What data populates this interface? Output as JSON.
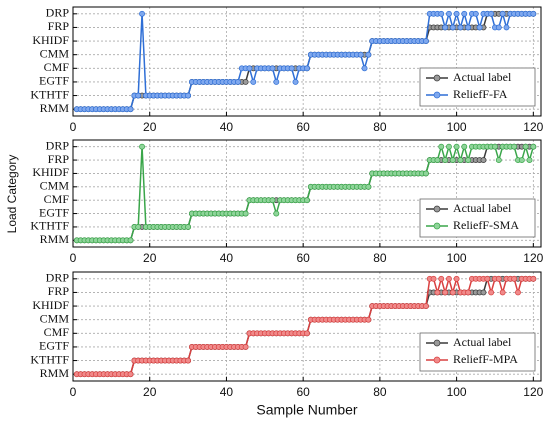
{
  "chart_data": [
    {
      "type": "line",
      "x": [
        1,
        2,
        3,
        4,
        5,
        6,
        7,
        8,
        9,
        10,
        11,
        12,
        13,
        14,
        15,
        16,
        17,
        18,
        19,
        20,
        21,
        22,
        23,
        24,
        25,
        26,
        27,
        28,
        29,
        30,
        31,
        32,
        33,
        34,
        35,
        36,
        37,
        38,
        39,
        40,
        41,
        42,
        43,
        44,
        45,
        46,
        47,
        48,
        49,
        50,
        51,
        52,
        53,
        54,
        55,
        56,
        57,
        58,
        59,
        60,
        61,
        62,
        63,
        64,
        65,
        66,
        67,
        68,
        69,
        70,
        71,
        72,
        73,
        74,
        75,
        76,
        77,
        78,
        79,
        80,
        81,
        82,
        83,
        84,
        85,
        86,
        87,
        88,
        89,
        90,
        91,
        92,
        93,
        94,
        95,
        96,
        97,
        98,
        99,
        100,
        101,
        102,
        103,
        104,
        105,
        106,
        107,
        108,
        109,
        110,
        111,
        112,
        113,
        114,
        115,
        116,
        117,
        118,
        119,
        120
      ],
      "series": [
        {
          "name": "Actual label",
          "color": "#3a3a3a",
          "marker": "#9a9a9a",
          "values": [
            1,
            1,
            1,
            1,
            1,
            1,
            1,
            1,
            1,
            1,
            1,
            1,
            1,
            1,
            1,
            2,
            2,
            2,
            2,
            2,
            2,
            2,
            2,
            2,
            2,
            2,
            2,
            2,
            2,
            2,
            3,
            3,
            3,
            3,
            3,
            3,
            3,
            3,
            3,
            3,
            3,
            3,
            3,
            3,
            3,
            4,
            4,
            4,
            4,
            4,
            4,
            4,
            4,
            4,
            4,
            4,
            4,
            4,
            4,
            4,
            4,
            5,
            5,
            5,
            5,
            5,
            5,
            5,
            5,
            5,
            5,
            5,
            5,
            5,
            5,
            5,
            5,
            6,
            6,
            6,
            6,
            6,
            6,
            6,
            6,
            6,
            6,
            6,
            6,
            6,
            6,
            6,
            7,
            7,
            7,
            7,
            7,
            7,
            7,
            7,
            7,
            7,
            7,
            7,
            7,
            7,
            7,
            8,
            8,
            8,
            8,
            8,
            8,
            8,
            8,
            8,
            8,
            8,
            8,
            8
          ]
        },
        {
          "name": "ReliefF-FA",
          "color": "#2f6fd6",
          "marker": "#7fa8ee",
          "values": [
            1,
            1,
            1,
            1,
            1,
            1,
            1,
            1,
            1,
            1,
            1,
            1,
            1,
            1,
            1,
            2,
            2,
            8,
            2,
            2,
            2,
            2,
            2,
            2,
            2,
            2,
            2,
            2,
            2,
            2,
            3,
            3,
            3,
            3,
            3,
            3,
            3,
            3,
            3,
            3,
            3,
            3,
            3,
            4,
            4,
            4,
            3,
            4,
            4,
            4,
            4,
            4,
            3,
            4,
            4,
            4,
            4,
            3,
            4,
            4,
            4,
            5,
            5,
            5,
            5,
            5,
            5,
            5,
            5,
            5,
            5,
            5,
            5,
            5,
            5,
            4,
            5,
            6,
            6,
            6,
            6,
            6,
            6,
            6,
            6,
            6,
            6,
            6,
            6,
            6,
            6,
            6,
            8,
            8,
            8,
            8,
            7,
            8,
            7,
            8,
            7,
            8,
            7,
            8,
            8,
            7,
            8,
            8,
            8,
            7,
            7,
            8,
            7,
            8,
            8,
            8,
            8,
            8,
            8,
            8
          ]
        }
      ],
      "xlim": [
        0,
        122
      ],
      "xticks": [
        0,
        20,
        40,
        60,
        80,
        100,
        120
      ],
      "ylim": [
        0.5,
        8.5
      ],
      "yticks": [
        {
          "value": 1,
          "label": "RMM"
        },
        {
          "value": 2,
          "label": "KTHTF"
        },
        {
          "value": 3,
          "label": "EGTF"
        },
        {
          "value": 4,
          "label": "CMF"
        },
        {
          "value": 5,
          "label": "CMM"
        },
        {
          "value": 6,
          "label": "KHIDF"
        },
        {
          "value": 7,
          "label": "FRP"
        },
        {
          "value": 8,
          "label": "DRP"
        }
      ],
      "grid": true,
      "legend": "lower right"
    },
    {
      "type": "line",
      "ylabel": "Load Category",
      "x": [
        1,
        2,
        3,
        4,
        5,
        6,
        7,
        8,
        9,
        10,
        11,
        12,
        13,
        14,
        15,
        16,
        17,
        18,
        19,
        20,
        21,
        22,
        23,
        24,
        25,
        26,
        27,
        28,
        29,
        30,
        31,
        32,
        33,
        34,
        35,
        36,
        37,
        38,
        39,
        40,
        41,
        42,
        43,
        44,
        45,
        46,
        47,
        48,
        49,
        50,
        51,
        52,
        53,
        54,
        55,
        56,
        57,
        58,
        59,
        60,
        61,
        62,
        63,
        64,
        65,
        66,
        67,
        68,
        69,
        70,
        71,
        72,
        73,
        74,
        75,
        76,
        77,
        78,
        79,
        80,
        81,
        82,
        83,
        84,
        85,
        86,
        87,
        88,
        89,
        90,
        91,
        92,
        93,
        94,
        95,
        96,
        97,
        98,
        99,
        100,
        101,
        102,
        103,
        104,
        105,
        106,
        107,
        108,
        109,
        110,
        111,
        112,
        113,
        114,
        115,
        116,
        117,
        118,
        119,
        120
      ],
      "series": [
        {
          "name": "Actual label",
          "color": "#3a3a3a",
          "marker": "#9a9a9a",
          "values": [
            1,
            1,
            1,
            1,
            1,
            1,
            1,
            1,
            1,
            1,
            1,
            1,
            1,
            1,
            1,
            2,
            2,
            2,
            2,
            2,
            2,
            2,
            2,
            2,
            2,
            2,
            2,
            2,
            2,
            2,
            3,
            3,
            3,
            3,
            3,
            3,
            3,
            3,
            3,
            3,
            3,
            3,
            3,
            3,
            3,
            4,
            4,
            4,
            4,
            4,
            4,
            4,
            4,
            4,
            4,
            4,
            4,
            4,
            4,
            4,
            4,
            5,
            5,
            5,
            5,
            5,
            5,
            5,
            5,
            5,
            5,
            5,
            5,
            5,
            5,
            5,
            5,
            6,
            6,
            6,
            6,
            6,
            6,
            6,
            6,
            6,
            6,
            6,
            6,
            6,
            6,
            6,
            7,
            7,
            7,
            7,
            7,
            7,
            7,
            7,
            7,
            7,
            7,
            7,
            7,
            7,
            7,
            8,
            8,
            8,
            8,
            8,
            8,
            8,
            8,
            8,
            8,
            8,
            8,
            8
          ]
        },
        {
          "name": "ReliefF-SMA",
          "color": "#3aa64a",
          "marker": "#8fd49a",
          "values": [
            1,
            1,
            1,
            1,
            1,
            1,
            1,
            1,
            1,
            1,
            1,
            1,
            1,
            1,
            1,
            2,
            2,
            8,
            2,
            2,
            2,
            2,
            2,
            2,
            2,
            2,
            2,
            2,
            2,
            2,
            3,
            3,
            3,
            3,
            3,
            3,
            3,
            3,
            3,
            3,
            3,
            3,
            3,
            3,
            3,
            4,
            4,
            4,
            4,
            4,
            4,
            4,
            3,
            4,
            4,
            4,
            4,
            4,
            4,
            4,
            4,
            5,
            5,
            5,
            5,
            5,
            5,
            5,
            5,
            5,
            5,
            5,
            5,
            5,
            5,
            5,
            5,
            6,
            6,
            6,
            6,
            6,
            6,
            6,
            6,
            6,
            6,
            6,
            6,
            6,
            6,
            6,
            7,
            7,
            7,
            8,
            7,
            8,
            7,
            8,
            7,
            8,
            7,
            8,
            8,
            8,
            8,
            8,
            8,
            8,
            7,
            8,
            8,
            8,
            8,
            7,
            7,
            8,
            7,
            8
          ]
        }
      ],
      "xlim": [
        0,
        122
      ],
      "xticks": [
        0,
        20,
        40,
        60,
        80,
        100,
        120
      ],
      "ylim": [
        0.5,
        8.5
      ],
      "yticks": [
        {
          "value": 1,
          "label": "RMM"
        },
        {
          "value": 2,
          "label": "KTHTF"
        },
        {
          "value": 3,
          "label": "EGTF"
        },
        {
          "value": 4,
          "label": "CMF"
        },
        {
          "value": 5,
          "label": "CMM"
        },
        {
          "value": 6,
          "label": "KHIDF"
        },
        {
          "value": 7,
          "label": "FRP"
        },
        {
          "value": 8,
          "label": "DRP"
        }
      ],
      "grid": true,
      "legend": "lower right"
    },
    {
      "type": "line",
      "xlabel": "Sample Number",
      "x": [
        1,
        2,
        3,
        4,
        5,
        6,
        7,
        8,
        9,
        10,
        11,
        12,
        13,
        14,
        15,
        16,
        17,
        18,
        19,
        20,
        21,
        22,
        23,
        24,
        25,
        26,
        27,
        28,
        29,
        30,
        31,
        32,
        33,
        34,
        35,
        36,
        37,
        38,
        39,
        40,
        41,
        42,
        43,
        44,
        45,
        46,
        47,
        48,
        49,
        50,
        51,
        52,
        53,
        54,
        55,
        56,
        57,
        58,
        59,
        60,
        61,
        62,
        63,
        64,
        65,
        66,
        67,
        68,
        69,
        70,
        71,
        72,
        73,
        74,
        75,
        76,
        77,
        78,
        79,
        80,
        81,
        82,
        83,
        84,
        85,
        86,
        87,
        88,
        89,
        90,
        91,
        92,
        93,
        94,
        95,
        96,
        97,
        98,
        99,
        100,
        101,
        102,
        103,
        104,
        105,
        106,
        107,
        108,
        109,
        110,
        111,
        112,
        113,
        114,
        115,
        116,
        117,
        118,
        119,
        120
      ],
      "series": [
        {
          "name": "Actual label",
          "color": "#3a3a3a",
          "marker": "#9a9a9a",
          "values": [
            1,
            1,
            1,
            1,
            1,
            1,
            1,
            1,
            1,
            1,
            1,
            1,
            1,
            1,
            1,
            2,
            2,
            2,
            2,
            2,
            2,
            2,
            2,
            2,
            2,
            2,
            2,
            2,
            2,
            2,
            3,
            3,
            3,
            3,
            3,
            3,
            3,
            3,
            3,
            3,
            3,
            3,
            3,
            3,
            3,
            4,
            4,
            4,
            4,
            4,
            4,
            4,
            4,
            4,
            4,
            4,
            4,
            4,
            4,
            4,
            4,
            5,
            5,
            5,
            5,
            5,
            5,
            5,
            5,
            5,
            5,
            5,
            5,
            5,
            5,
            5,
            5,
            6,
            6,
            6,
            6,
            6,
            6,
            6,
            6,
            6,
            6,
            6,
            6,
            6,
            6,
            6,
            7,
            7,
            7,
            7,
            7,
            7,
            7,
            7,
            7,
            7,
            7,
            7,
            7,
            7,
            7,
            8,
            8,
            8,
            8,
            8,
            8,
            8,
            8,
            8,
            8,
            8,
            8,
            8
          ]
        },
        {
          "name": "ReliefF-MPA",
          "color": "#d94040",
          "marker": "#f08a8a",
          "values": [
            1,
            1,
            1,
            1,
            1,
            1,
            1,
            1,
            1,
            1,
            1,
            1,
            1,
            1,
            1,
            2,
            2,
            2,
            2,
            2,
            2,
            2,
            2,
            2,
            2,
            2,
            2,
            2,
            2,
            2,
            3,
            3,
            3,
            3,
            3,
            3,
            3,
            3,
            3,
            3,
            3,
            3,
            3,
            3,
            3,
            4,
            4,
            4,
            4,
            4,
            4,
            4,
            4,
            4,
            4,
            4,
            4,
            4,
            4,
            4,
            4,
            5,
            5,
            5,
            5,
            5,
            5,
            5,
            5,
            5,
            5,
            5,
            5,
            5,
            5,
            5,
            5,
            6,
            6,
            6,
            6,
            6,
            6,
            6,
            6,
            6,
            6,
            6,
            6,
            6,
            6,
            6,
            8,
            8,
            7,
            8,
            7,
            8,
            7,
            8,
            7,
            7,
            7,
            8,
            8,
            8,
            8,
            8,
            7,
            8,
            8,
            7,
            8,
            8,
            8,
            7,
            8,
            8,
            8,
            8
          ]
        }
      ],
      "xlim": [
        0,
        122
      ],
      "xticks": [
        0,
        20,
        40,
        60,
        80,
        100,
        120
      ],
      "ylim": [
        0.5,
        8.5
      ],
      "yticks": [
        {
          "value": 1,
          "label": "RMM"
        },
        {
          "value": 2,
          "label": "KTHTF"
        },
        {
          "value": 3,
          "label": "EGTF"
        },
        {
          "value": 4,
          "label": "CMF"
        },
        {
          "value": 5,
          "label": "CMM"
        },
        {
          "value": 6,
          "label": "KHIDF"
        },
        {
          "value": 7,
          "label": "FRP"
        },
        {
          "value": 8,
          "label": "DRP"
        }
      ],
      "grid": true,
      "legend": "lower right"
    }
  ]
}
